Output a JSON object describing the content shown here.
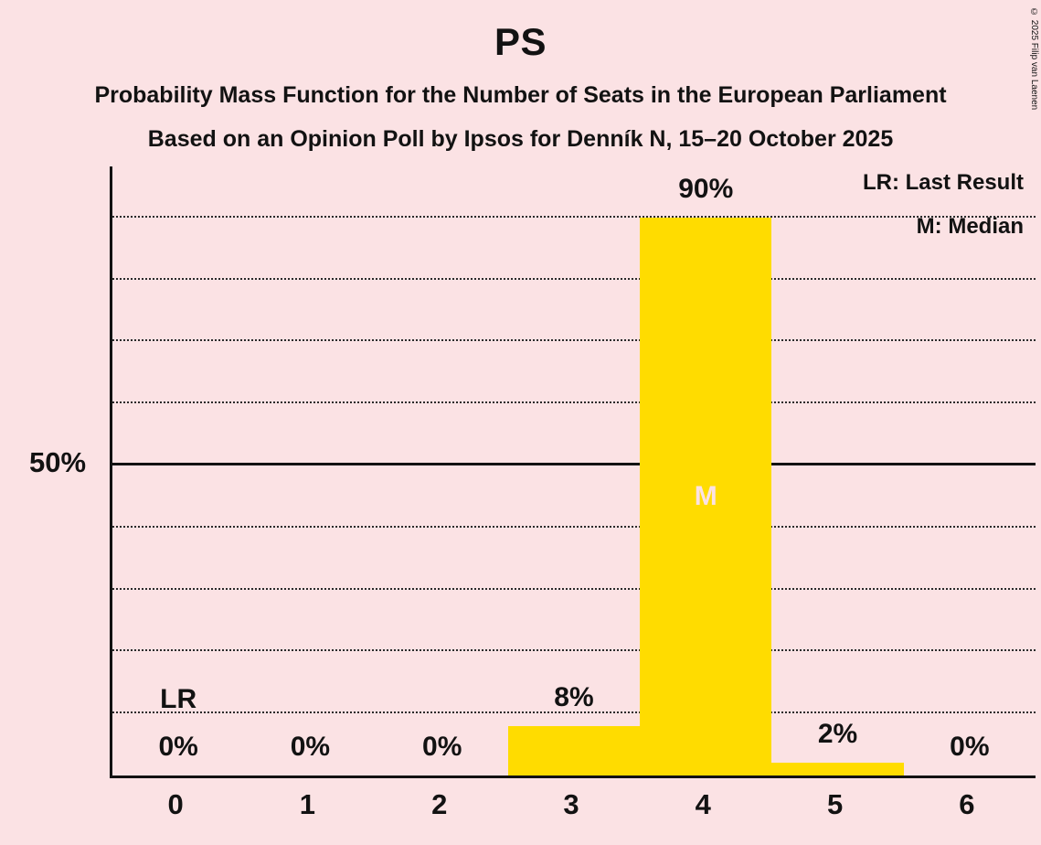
{
  "title": "PS",
  "subtitle1": "Probability Mass Function for the Number of Seats in the European Parliament",
  "subtitle2": "Based on an Opinion Poll by Ipsos for Denník N, 15–20 October 2025",
  "legend": {
    "lr": "LR: Last Result",
    "m": "M: Median"
  },
  "y_axis_label": "50%",
  "copyright": "© 2025 Filip van Laenen",
  "chart_data": {
    "type": "bar",
    "title": "PS",
    "categories": [
      "0",
      "1",
      "2",
      "3",
      "4",
      "5",
      "6"
    ],
    "values": [
      0,
      0,
      0,
      8,
      90,
      2,
      0
    ],
    "value_labels": [
      "0%",
      "0%",
      "0%",
      "8%",
      "90%",
      "2%",
      "0%"
    ],
    "ylim": [
      0,
      100
    ],
    "gridlines_percent": [
      10,
      20,
      30,
      40,
      50,
      60,
      70,
      80,
      90
    ],
    "solid_line_percent": 50,
    "y_tick_label": "50%",
    "median_category": "4",
    "median_marker": "M",
    "last_result_category": "0",
    "last_result_marker": "LR",
    "bar_color": "#ffdc00",
    "background_color": "#fbe2e4",
    "text_color": "#121212",
    "legend_entries": [
      "LR: Last Result",
      "M: Median"
    ]
  }
}
